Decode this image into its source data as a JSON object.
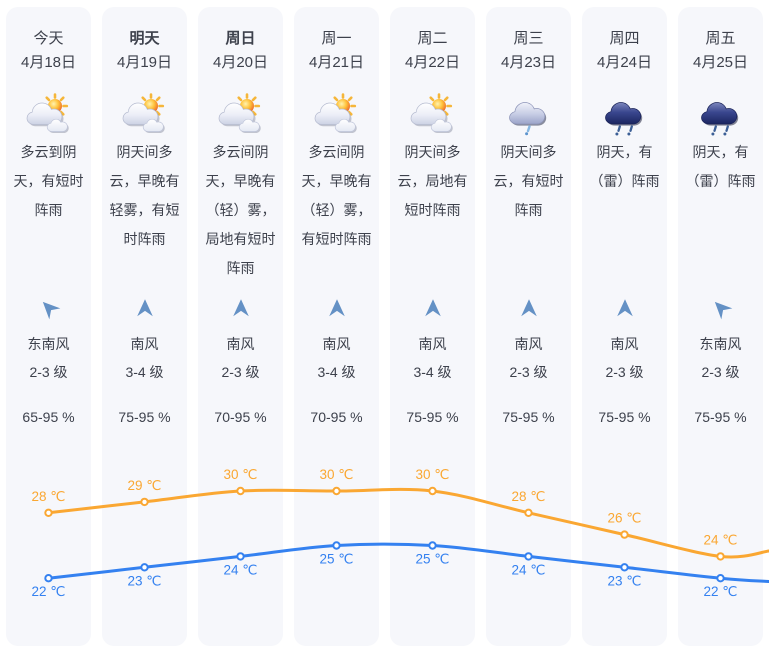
{
  "columns": [
    {
      "day": "今天",
      "date": "4月18日",
      "weekend": false,
      "icon": "partly-cloudy",
      "desc": "多云到阴天，有短时阵雨",
      "wind_dir": "东南风",
      "wind_level": "2-3 级",
      "wind_rotation": -45,
      "humidity": "65-95 %"
    },
    {
      "day": "明天",
      "date": "4月19日",
      "weekend": true,
      "icon": "partly-cloudy",
      "desc": "阴天间多云，早晚有轻雾，有短时阵雨",
      "wind_dir": "南风",
      "wind_level": "3-4 级",
      "wind_rotation": 0,
      "humidity": "75-95 %"
    },
    {
      "day": "周日",
      "date": "4月20日",
      "weekend": true,
      "icon": "partly-cloudy",
      "desc": "多云间阴天，早晚有（轻）雾，局地有短时阵雨",
      "wind_dir": "南风",
      "wind_level": "2-3 级",
      "wind_rotation": 0,
      "humidity": "70-95 %"
    },
    {
      "day": "周一",
      "date": "4月21日",
      "weekend": false,
      "icon": "partly-cloudy",
      "desc": "多云间阴天，早晚有（轻）雾，有短时阵雨",
      "wind_dir": "南风",
      "wind_level": "3-4 级",
      "wind_rotation": 0,
      "humidity": "70-95 %"
    },
    {
      "day": "周二",
      "date": "4月22日",
      "weekend": false,
      "icon": "partly-cloudy",
      "desc": "阴天间多云，局地有短时阵雨",
      "wind_dir": "南风",
      "wind_level": "3-4 级",
      "wind_rotation": 0,
      "humidity": "75-95 %"
    },
    {
      "day": "周三",
      "date": "4月23日",
      "weekend": false,
      "icon": "light-rain",
      "desc": "阴天间多云，有短时阵雨",
      "wind_dir": "南风",
      "wind_level": "2-3 级",
      "wind_rotation": 0,
      "humidity": "75-95 %"
    },
    {
      "day": "周四",
      "date": "4月24日",
      "weekend": false,
      "icon": "rain",
      "desc": "阴天，有（雷）阵雨",
      "wind_dir": "南风",
      "wind_level": "2-3 级",
      "wind_rotation": 0,
      "humidity": "75-95 %"
    },
    {
      "day": "周五",
      "date": "4月25日",
      "weekend": false,
      "icon": "rain",
      "desc": "阴天，有（雷）阵雨",
      "wind_dir": "东南风",
      "wind_level": "2-3 级",
      "wind_rotation": -45,
      "humidity": "75-95 %"
    }
  ],
  "chart_data": {
    "type": "line",
    "categories": [
      "4月18日",
      "4月19日",
      "4月20日",
      "4月21日",
      "4月22日",
      "4月23日",
      "4月24日",
      "4月25日"
    ],
    "series": [
      {
        "name": "high",
        "values": [
          28,
          29,
          30,
          30,
          30,
          28,
          26,
          24
        ],
        "color": "#faa732",
        "label_position": "above"
      },
      {
        "name": "low",
        "values": [
          22,
          23,
          24,
          25,
          25,
          24,
          23,
          22
        ],
        "color": "#3481f0",
        "label_position": "below"
      }
    ],
    "unit": "℃",
    "grid": false,
    "legend": false,
    "axes_hidden": true,
    "right_edge_trend": {
      "high": 24.5,
      "low": 21.7
    }
  },
  "colors": {
    "card_bg": "#f6f7fb",
    "text": "#3d414c",
    "high_line": "#faa732",
    "low_line": "#3481f0",
    "wind_arrow": "#6491c5"
  }
}
